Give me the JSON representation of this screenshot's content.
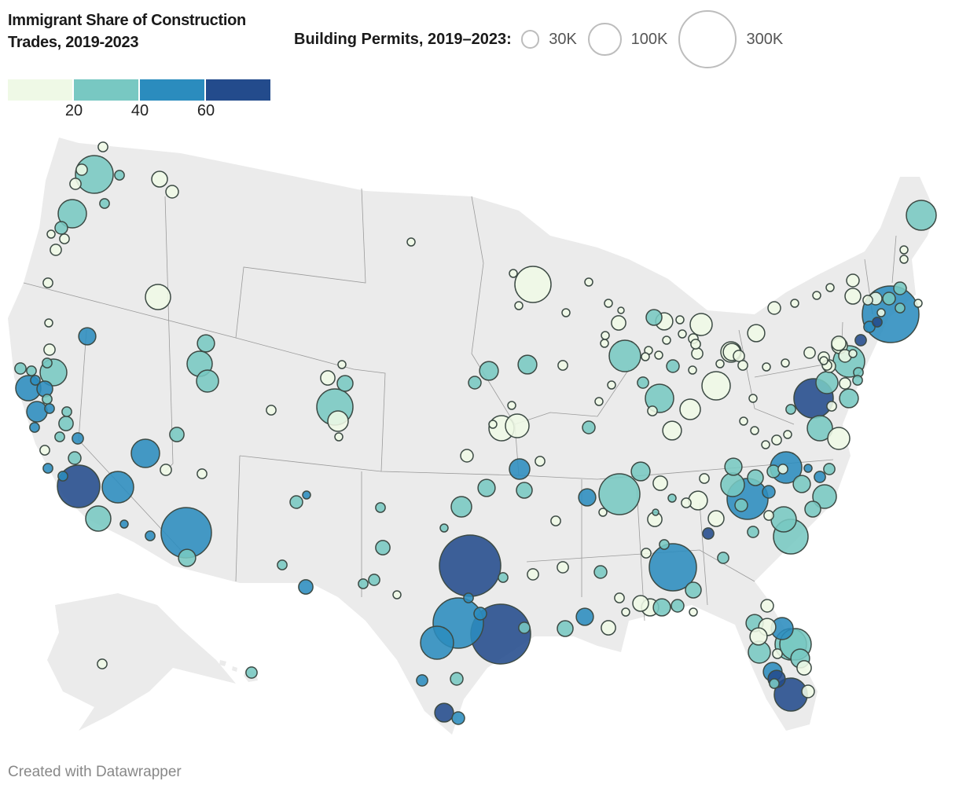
{
  "legend": {
    "color_title": "Immigrant Share of Construction Trades, 2019-2023",
    "bins": [
      {
        "range": "<20",
        "color": "#eff9e6"
      },
      {
        "range": "20–40",
        "color": "#78c8c2"
      },
      {
        "range": "40–60",
        "color": "#2b8cbe"
      },
      {
        "range": ">60",
        "color": "#234b8c"
      }
    ],
    "ticks": [
      "20",
      "40",
      "60"
    ],
    "size_title": "Building Permits, 2019–2023:",
    "sizes": [
      {
        "label": "30K",
        "value_k": 30
      },
      {
        "label": "100K",
        "value_k": 100
      },
      {
        "label": "300K",
        "value_k": 300
      }
    ]
  },
  "map_style": {
    "land": "#ebebeb",
    "borders": "#9a9a9a",
    "marker_stroke": "#3c4a44"
  },
  "markers": [
    [
      8,
      0
    ],
    [
      11,
      0
    ],
    [
      126,
      1
    ],
    [
      8,
      1
    ],
    [
      11,
      0
    ],
    [
      8,
      1
    ],
    [
      22,
      0
    ],
    [
      14,
      0
    ],
    [
      71,
      1
    ],
    [
      14,
      1
    ],
    [
      5.5,
      0
    ],
    [
      8,
      0
    ],
    [
      11,
      0
    ],
    [
      8,
      0
    ],
    [
      56,
      0
    ],
    [
      5.5,
      0
    ],
    [
      26,
      2
    ],
    [
      11,
      0
    ],
    [
      11,
      1
    ],
    [
      8,
      1
    ],
    [
      63,
      1
    ],
    [
      8,
      1
    ],
    [
      56,
      2
    ],
    [
      22,
      2
    ],
    [
      8,
      2
    ],
    [
      8,
      1
    ],
    [
      37,
      2
    ],
    [
      8,
      2
    ],
    [
      8,
      1
    ],
    [
      18,
      1
    ],
    [
      8,
      2
    ],
    [
      8,
      1
    ],
    [
      11,
      2
    ],
    [
      8,
      0
    ],
    [
      14,
      1
    ],
    [
      8,
      2
    ],
    [
      8,
      2
    ],
    [
      159,
      3
    ],
    [
      87,
      2
    ],
    [
      56,
      1
    ],
    [
      5.5,
      2
    ],
    [
      8,
      2
    ],
    [
      26,
      1
    ],
    [
      56,
      1
    ],
    [
      43,
      1
    ],
    [
      18,
      1
    ],
    [
      71,
      2
    ],
    [
      11,
      0
    ],
    [
      8,
      0
    ],
    [
      224,
      2
    ],
    [
      26,
      1
    ],
    [
      8,
      0
    ],
    [
      14,
      1
    ],
    [
      5.5,
      2
    ],
    [
      8,
      1
    ],
    [
      18,
      2
    ],
    [
      5.5,
      0
    ],
    [
      18,
      0
    ],
    [
      22,
      1
    ],
    [
      116,
      1
    ],
    [
      37,
      0
    ],
    [
      5.5,
      0
    ],
    [
      11,
      1
    ],
    [
      8,
      0
    ],
    [
      8,
      1
    ],
    [
      18,
      1
    ],
    [
      332,
      3
    ],
    [
      11,
      1
    ],
    [
      8,
      1
    ],
    [
      5.5,
      0
    ],
    [
      5.5,
      1
    ],
    [
      37,
      1
    ],
    [
      26,
      1
    ],
    [
      224,
      2
    ],
    [
      315,
      3
    ],
    [
      96,
      2
    ],
    [
      8,
      1
    ],
    [
      14,
      2
    ],
    [
      8,
      2
    ],
    [
      11,
      1
    ],
    [
      11,
      2
    ],
    [
      14,
      1
    ],
    [
      31,
      3
    ],
    [
      14,
      2
    ],
    [
      5.5,
      0
    ],
    [
      116,
      0
    ],
    [
      5.5,
      0
    ],
    [
      5.5,
      0
    ],
    [
      5.5,
      0
    ],
    [
      5.5,
      0
    ],
    [
      5.5,
      0
    ],
    [
      3.5,
      0
    ],
    [
      18,
      0
    ],
    [
      5.5,
      0
    ],
    [
      5.5,
      0
    ],
    [
      87,
      1
    ],
    [
      5.5,
      0
    ],
    [
      22,
      1
    ],
    [
      26,
      0
    ],
    [
      5.5,
      0
    ],
    [
      43,
      0
    ],
    [
      5.5,
      0
    ],
    [
      8,
      0
    ],
    [
      8,
      0
    ],
    [
      5.5,
      0
    ],
    [
      11,
      0
    ],
    [
      14,
      1
    ],
    [
      5.5,
      0
    ],
    [
      5.5,
      0
    ],
    [
      5.5,
      0
    ],
    [
      31,
      1
    ],
    [
      14,
      1
    ],
    [
      31,
      1
    ],
    [
      8,
      0
    ],
    [
      5.5,
      0
    ],
    [
      5.5,
      0
    ],
    [
      11,
      1
    ],
    [
      71,
      1
    ],
    [
      8,
      0
    ],
    [
      37,
      0
    ],
    [
      31,
      0
    ],
    [
      71,
      0
    ],
    [
      26,
      0
    ],
    [
      11,
      0
    ],
    [
      8,
      0
    ],
    [
      5.5,
      0
    ],
    [
      5.5,
      0
    ],
    [
      5.5,
      0
    ],
    [
      5.5,
      0
    ],
    [
      5.5,
      0
    ],
    [
      8,
      0
    ],
    [
      5.5,
      0
    ],
    [
      5.5,
      0
    ],
    [
      5.5,
      0
    ],
    [
      56,
      0
    ],
    [
      49,
      0
    ],
    [
      14,
      1
    ],
    [
      14,
      0
    ],
    [
      8,
      0
    ],
    [
      37,
      2
    ],
    [
      22,
      1
    ],
    [
      8,
      0
    ],
    [
      26,
      2
    ],
    [
      5.5,
      0
    ],
    [
      148,
      1
    ],
    [
      18,
      0
    ],
    [
      31,
      1
    ],
    [
      3.5,
      1
    ],
    [
      18,
      0
    ],
    [
      8,
      0
    ],
    [
      31,
      0
    ],
    [
      8,
      0
    ],
    [
      5.5,
      1
    ],
    [
      11,
      0
    ],
    [
      11,
      0
    ],
    [
      14,
      1
    ],
    [
      22,
      1
    ],
    [
      26,
      2
    ],
    [
      18,
      0
    ],
    [
      5.5,
      0
    ],
    [
      8,
      0
    ],
    [
      22,
      0
    ],
    [
      26,
      0
    ],
    [
      26,
      1
    ],
    [
      14,
      1
    ],
    [
      5.5,
      0
    ],
    [
      22,
      1
    ],
    [
      8,
      1
    ],
    [
      8,
      0
    ],
    [
      197,
      2
    ],
    [
      11,
      3
    ],
    [
      22,
      0
    ],
    [
      11,
      1
    ],
    [
      11,
      1
    ],
    [
      26,
      1
    ],
    [
      49,
      1
    ],
    [
      14,
      1
    ],
    [
      148,
      2
    ],
    [
      14,
      2
    ],
    [
      22,
      1
    ],
    [
      14,
      1
    ],
    [
      8,
      0
    ],
    [
      87,
      2
    ],
    [
      5.5,
      2
    ],
    [
      11,
      2
    ],
    [
      11,
      1
    ],
    [
      26,
      1
    ],
    [
      8,
      0
    ],
    [
      56,
      1
    ],
    [
      22,
      1
    ],
    [
      49,
      1
    ],
    [
      106,
      1
    ],
    [
      14,
      0
    ],
    [
      26,
      1
    ],
    [
      26,
      0
    ],
    [
      43,
      2
    ],
    [
      87,
      1
    ],
    [
      43,
      1
    ],
    [
      8,
      0
    ],
    [
      26,
      0
    ],
    [
      87,
      1
    ],
    [
      31,
      2
    ],
    [
      8,
      1
    ],
    [
      31,
      1
    ],
    [
      18,
      0
    ],
    [
      26,
      3
    ],
    [
      96,
      3
    ],
    [
      14,
      0
    ],
    [
      14,
      0
    ],
    [
      5.5,
      0
    ],
    [
      5.5,
      0
    ],
    [
      5.5,
      0
    ],
    [
      14,
      0
    ],
    [
      22,
      0
    ],
    [
      5.5,
      0
    ],
    [
      5.5,
      0
    ],
    [
      79,
      1
    ],
    [
      14,
      1
    ],
    [
      14,
      1
    ],
    [
      8,
      1
    ],
    [
      5.5,
      0
    ],
    [
      8,
      0
    ],
    [
      14,
      0
    ],
    [
      5.5,
      0
    ],
    [
      283,
      2
    ],
    [
      11,
      3
    ],
    [
      11,
      2
    ],
    [
      8,
      3
    ],
    [
      5.5,
      0
    ],
    [
      26,
      0
    ],
    [
      37,
      0
    ],
    [
      5.5,
      0
    ],
    [
      5.5,
      0
    ],
    [
      11,
      0
    ],
    [
      18,
      0
    ],
    [
      22,
      0
    ],
    [
      14,
      0
    ],
    [
      5.5,
      0
    ],
    [
      11,
      0
    ],
    [
      8,
      0
    ],
    [
      14,
      0
    ],
    [
      87,
      1
    ],
    [
      8,
      1
    ],
    [
      8,
      1
    ],
    [
      43,
      1
    ],
    [
      11,
      0
    ],
    [
      136,
      3
    ],
    [
      8,
      0
    ],
    [
      8,
      1
    ],
    [
      31,
      1
    ],
    [
      56,
      1
    ],
    [
      43,
      0
    ]
  ],
  "footer": {
    "credit": "Created with Datawrapper"
  }
}
